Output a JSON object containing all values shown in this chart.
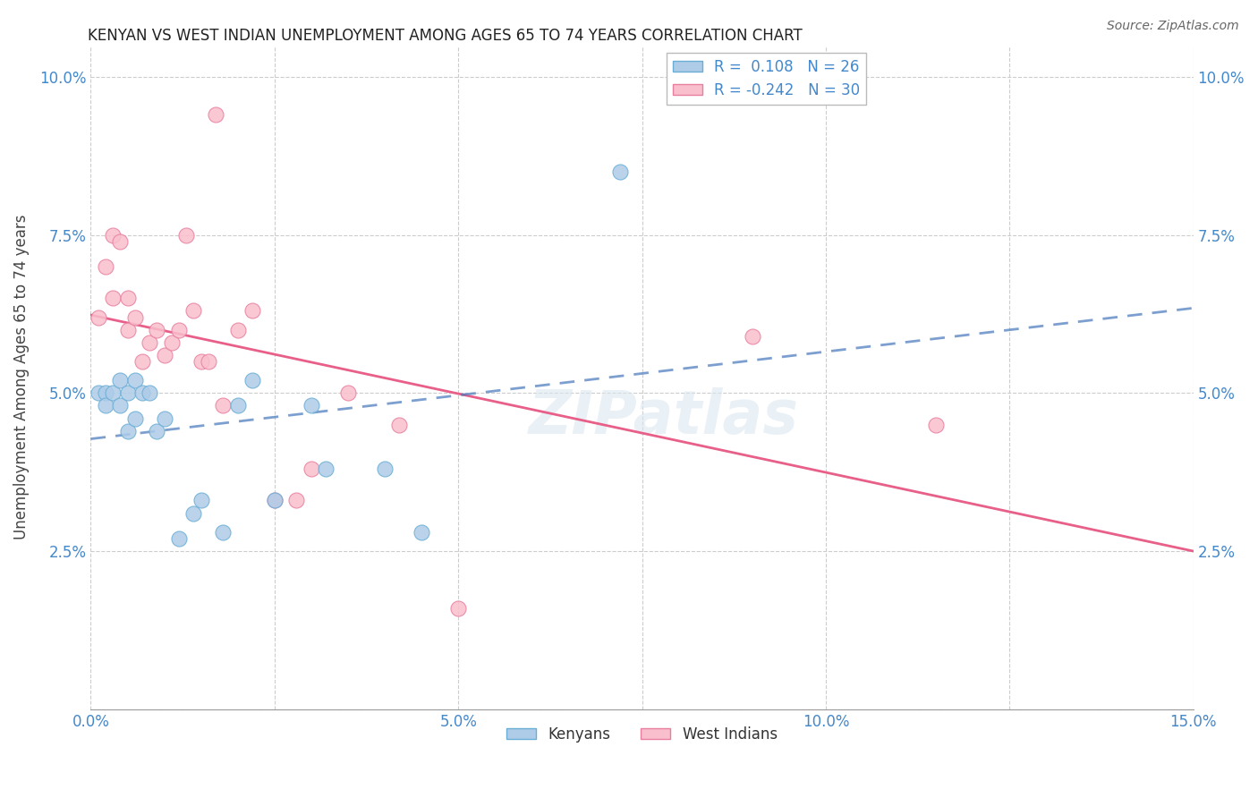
{
  "title": "KENYAN VS WEST INDIAN UNEMPLOYMENT AMONG AGES 65 TO 74 YEARS CORRELATION CHART",
  "source": "Source: ZipAtlas.com",
  "ylabel": "Unemployment Among Ages 65 to 74 years",
  "xlim": [
    0.0,
    0.15
  ],
  "ylim": [
    0.0,
    0.105
  ],
  "xticks": [
    0.0,
    0.025,
    0.05,
    0.075,
    0.1,
    0.125,
    0.15
  ],
  "xticklabels": [
    "0.0%",
    "",
    "5.0%",
    "",
    "10.0%",
    "",
    "15.0%"
  ],
  "yticks": [
    0.0,
    0.025,
    0.05,
    0.075,
    0.1
  ],
  "yticklabels": [
    "",
    "2.5%",
    "5.0%",
    "7.5%",
    "10.0%"
  ],
  "kenyan_R": 0.108,
  "kenyan_N": 26,
  "westindian_R": -0.242,
  "westindian_N": 30,
  "kenyan_color": "#aecce8",
  "westindian_color": "#f9bfcc",
  "kenyan_edge_color": "#6aaed6",
  "westindian_edge_color": "#e87fa0",
  "kenyan_trend_color": "#4477bb",
  "westindian_trend_color": "#e8608a",
  "watermark_color": "#dce8f0",
  "kenyan_x": [
    0.001,
    0.002,
    0.002,
    0.003,
    0.004,
    0.004,
    0.005,
    0.005,
    0.006,
    0.006,
    0.007,
    0.008,
    0.009,
    0.01,
    0.012,
    0.014,
    0.015,
    0.018,
    0.02,
    0.022,
    0.025,
    0.03,
    0.032,
    0.04,
    0.045,
    0.072
  ],
  "kenyan_y": [
    0.05,
    0.05,
    0.048,
    0.05,
    0.052,
    0.048,
    0.05,
    0.044,
    0.052,
    0.046,
    0.05,
    0.05,
    0.044,
    0.046,
    0.027,
    0.031,
    0.033,
    0.028,
    0.048,
    0.052,
    0.033,
    0.048,
    0.038,
    0.038,
    0.028,
    0.085
  ],
  "westindian_x": [
    0.001,
    0.002,
    0.003,
    0.003,
    0.004,
    0.005,
    0.005,
    0.006,
    0.007,
    0.008,
    0.009,
    0.01,
    0.011,
    0.012,
    0.013,
    0.014,
    0.015,
    0.016,
    0.017,
    0.018,
    0.02,
    0.022,
    0.025,
    0.028,
    0.03,
    0.035,
    0.042,
    0.05,
    0.09,
    0.115
  ],
  "westindian_y": [
    0.062,
    0.07,
    0.075,
    0.065,
    0.074,
    0.06,
    0.065,
    0.062,
    0.055,
    0.058,
    0.06,
    0.056,
    0.058,
    0.06,
    0.075,
    0.063,
    0.055,
    0.055,
    0.094,
    0.048,
    0.06,
    0.063,
    0.033,
    0.033,
    0.038,
    0.05,
    0.045,
    0.016,
    0.059,
    0.045
  ]
}
